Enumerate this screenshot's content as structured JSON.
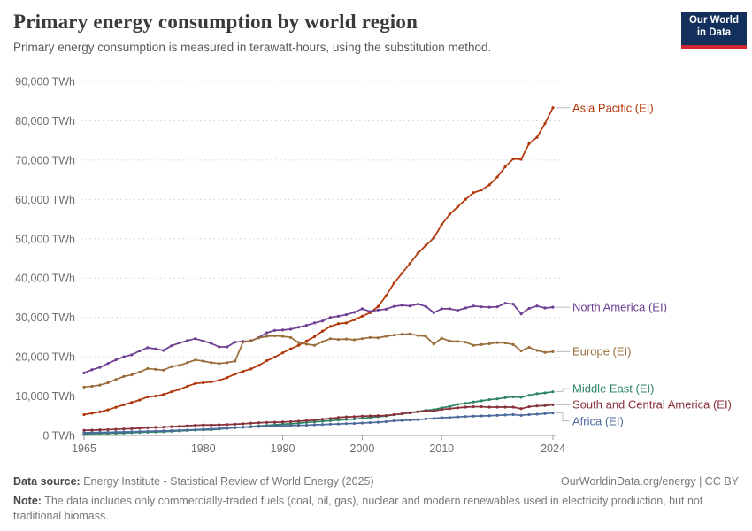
{
  "header": {
    "title": "Primary energy consumption by world region",
    "subtitle": "Primary energy consumption is measured in terawatt-hours, using the substitution method.",
    "logo_line1": "Our World",
    "logo_line2": "in Data"
  },
  "chart_data": {
    "type": "line",
    "title": "Primary energy consumption by world region",
    "unit": "TWh",
    "ylim": [
      0,
      90000
    ],
    "y_ticks": [
      0,
      10000,
      20000,
      30000,
      40000,
      50000,
      60000,
      70000,
      80000,
      90000
    ],
    "y_tick_suffix": " TWh",
    "x_ticks": [
      1965,
      1980,
      1990,
      2000,
      2010,
      2024
    ],
    "grid": "dashed-horizontal",
    "legend_position": "right-end-labels",
    "years": [
      1965,
      1966,
      1967,
      1968,
      1969,
      1970,
      1971,
      1972,
      1973,
      1974,
      1975,
      1976,
      1977,
      1978,
      1979,
      1980,
      1981,
      1982,
      1983,
      1984,
      1985,
      1986,
      1987,
      1988,
      1989,
      1990,
      1991,
      1992,
      1993,
      1994,
      1995,
      1996,
      1997,
      1998,
      1999,
      2000,
      2001,
      2002,
      2003,
      2004,
      2005,
      2006,
      2007,
      2008,
      2009,
      2010,
      2011,
      2012,
      2013,
      2014,
      2015,
      2016,
      2017,
      2018,
      2019,
      2020,
      2021,
      2022,
      2023,
      2024
    ],
    "series": [
      {
        "name": "Asia Pacific (EI)",
        "color": "#B13507",
        "values": [
          5300,
          5650,
          6000,
          6500,
          7150,
          7800,
          8400,
          9000,
          9800,
          10000,
          10400,
          11100,
          11700,
          12500,
          13200,
          13400,
          13600,
          14000,
          14700,
          15600,
          16300,
          16900,
          17800,
          19000,
          19900,
          21000,
          22000,
          22900,
          24000,
          25100,
          26500,
          27700,
          28400,
          28600,
          29400,
          30300,
          31200,
          32800,
          35500,
          38700,
          41200,
          43700,
          46300,
          48300,
          50200,
          53600,
          56200,
          58100,
          60000,
          61700,
          62400,
          63700,
          65700,
          68300,
          70300,
          70200,
          74200,
          75800,
          79300,
          83300
        ]
      },
      {
        "name": "North America (EI)",
        "color": "#6D3E91",
        "values": [
          15900,
          16700,
          17300,
          18300,
          19200,
          20000,
          20500,
          21500,
          22300,
          22000,
          21600,
          22800,
          23500,
          24100,
          24600,
          24000,
          23400,
          22500,
          22500,
          23700,
          23900,
          24000,
          24900,
          26100,
          26700,
          26800,
          27000,
          27500,
          28000,
          28600,
          29100,
          30000,
          30300,
          30700,
          31300,
          32200,
          31500,
          31900,
          32100,
          32800,
          33100,
          32900,
          33400,
          32800,
          31200,
          32200,
          32200,
          31800,
          32400,
          32900,
          32700,
          32600,
          32700,
          33600,
          33400,
          30900,
          32300,
          32900,
          32400,
          32600
        ]
      },
      {
        "name": "Europe (EI)",
        "color": "#996D39",
        "values": [
          12300,
          12500,
          12800,
          13400,
          14200,
          15000,
          15400,
          16100,
          17000,
          16800,
          16600,
          17500,
          17800,
          18500,
          19200,
          18900,
          18500,
          18300,
          18500,
          18900,
          23700,
          24100,
          24800,
          25200,
          25300,
          25200,
          24900,
          23600,
          23200,
          22900,
          23800,
          24600,
          24400,
          24500,
          24300,
          24600,
          24900,
          24800,
          25200,
          25500,
          25700,
          25800,
          25400,
          25200,
          23200,
          24700,
          24000,
          23900,
          23700,
          22900,
          23100,
          23300,
          23600,
          23500,
          23100,
          21500,
          22400,
          21600,
          21100,
          21300
        ]
      },
      {
        "name": "Middle East (EI)",
        "color": "#2C8465",
        "values": [
          400,
          440,
          480,
          520,
          570,
          620,
          690,
          770,
          850,
          900,
          950,
          1060,
          1160,
          1260,
          1360,
          1400,
          1460,
          1600,
          1800,
          2000,
          2100,
          2250,
          2400,
          2550,
          2700,
          2850,
          2950,
          3100,
          3300,
          3450,
          3600,
          3750,
          3900,
          4050,
          4150,
          4350,
          4550,
          4750,
          4950,
          5250,
          5500,
          5800,
          6050,
          6400,
          6550,
          7000,
          7350,
          7900,
          8150,
          8500,
          8800,
          9100,
          9300,
          9600,
          9800,
          9700,
          10200,
          10600,
          10800,
          11100
        ]
      },
      {
        "name": "South and Central America (EI)",
        "color": "#883039",
        "values": [
          1300,
          1350,
          1400,
          1480,
          1560,
          1650,
          1720,
          1820,
          1950,
          2050,
          2100,
          2220,
          2320,
          2450,
          2570,
          2650,
          2650,
          2700,
          2750,
          2850,
          2950,
          3100,
          3200,
          3300,
          3350,
          3400,
          3500,
          3600,
          3750,
          3900,
          4100,
          4300,
          4550,
          4700,
          4750,
          4900,
          4950,
          5000,
          5050,
          5300,
          5500,
          5750,
          6000,
          6250,
          6200,
          6600,
          6800,
          7000,
          7200,
          7300,
          7300,
          7200,
          7200,
          7200,
          7200,
          6800,
          7300,
          7500,
          7600,
          7800
        ]
      },
      {
        "name": "Africa (EI)",
        "color": "#4C6A9C",
        "values": [
          700,
          730,
          760,
          800,
          840,
          900,
          940,
          990,
          1050,
          1100,
          1150,
          1220,
          1300,
          1370,
          1450,
          1550,
          1650,
          1750,
          1850,
          1970,
          2080,
          2150,
          2250,
          2350,
          2400,
          2450,
          2500,
          2550,
          2600,
          2700,
          2750,
          2850,
          2900,
          3000,
          3050,
          3150,
          3250,
          3350,
          3500,
          3700,
          3800,
          3900,
          4000,
          4200,
          4300,
          4500,
          4550,
          4700,
          4800,
          4900,
          4950,
          5000,
          5100,
          5200,
          5300,
          5100,
          5300,
          5400,
          5550,
          5700
        ]
      }
    ]
  },
  "footer": {
    "datasource_label": "Data source:",
    "datasource_value": "Energy Institute - Statistical Review of World Energy (2025)",
    "link": "OurWorldinData.org/energy | CC BY",
    "note_label": "Note:",
    "note_value": "The data includes only commercially-traded fuels (coal, oil, gas), nuclear and modern renewables used in electricity production, but not traditional biomass."
  }
}
